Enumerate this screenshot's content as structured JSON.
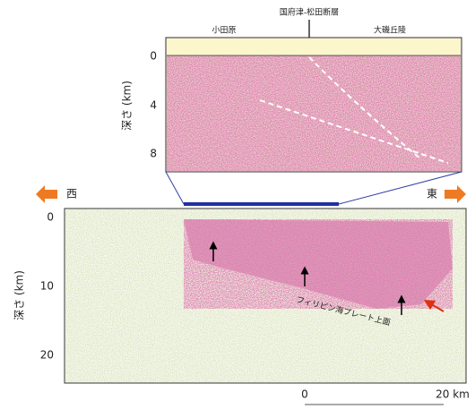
{
  "top_panel": {
    "fault_label": "国府津-松田断層",
    "left_label": "小田原",
    "right_label": "大磯丘陵",
    "axis_label": "深さ (km)",
    "ticks": [
      "0",
      "4",
      "8"
    ]
  },
  "direction": {
    "west": "西",
    "east": "東"
  },
  "bottom_panel": {
    "axis_label": "深さ (km)",
    "ticks": [
      "0",
      "10",
      "20"
    ],
    "annotation": "フィリピン海プレート上面"
  },
  "scale": {
    "start": "0",
    "end": "20 km"
  }
}
